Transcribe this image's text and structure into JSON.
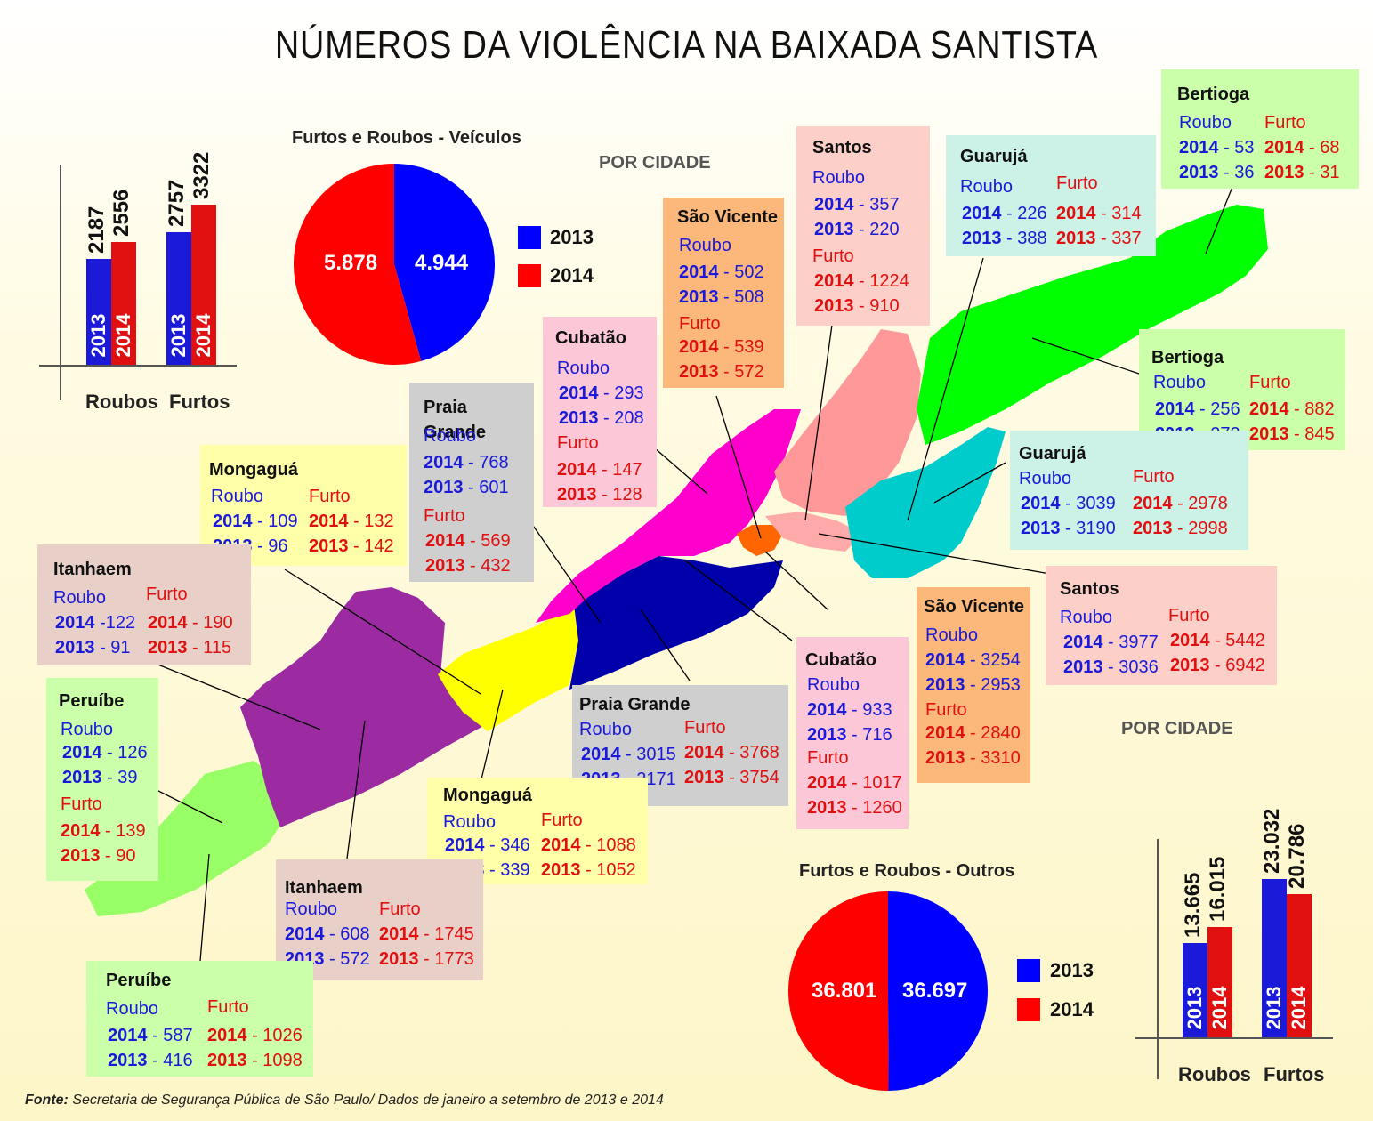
{
  "title": "NÚMEROS DA VIOLÊNCIA NA BAIXADA SANTISTA",
  "source_label": "Fonte:",
  "source_text": "Secretaria de Segurança Pública de São Paulo/ Dados de janeiro a setembro de 2013 e 2014",
  "por_cidade": "POR CIDADE",
  "colors": {
    "y2013": "#1a1ad8",
    "y2014": "#e01010"
  },
  "legend": {
    "y2013": "2013",
    "y2014": "2014"
  },
  "labels": {
    "roubo": "Roubo",
    "furto": "Furto"
  },
  "veiculos": {
    "title": "Furtos e Roubos - Veículos",
    "pie": {
      "v2014": "5.878",
      "v2013": "4.944"
    },
    "bars": [
      {
        "cat": "Roubos",
        "v2013": "2187",
        "v2014": "2556"
      },
      {
        "cat": "Furtos",
        "v2013": "2757",
        "v2014": "3322"
      }
    ],
    "cities": {
      "bertioga": {
        "name": "Bertioga",
        "r14": "53",
        "r13": "36",
        "f14": "68",
        "f13": "31"
      },
      "guaruja": {
        "name": "Guarujá",
        "r14": "226",
        "r13": "388",
        "f14": "314",
        "f13": "337"
      },
      "santos": {
        "name": "Santos",
        "r14": "357",
        "r13": "220",
        "f14": "1224",
        "f13": "910"
      },
      "saovicente": {
        "name": "São Vicente",
        "r14": "502",
        "r13": "508",
        "f14": "539",
        "f13": "572"
      },
      "cubatao": {
        "name": "Cubatão",
        "r14": "293",
        "r13": "208",
        "f14": "147",
        "f13": "128"
      },
      "praiagrande": {
        "name": "Praia Grande",
        "r14": "768",
        "r13": "601",
        "f14": "569",
        "f13": "432"
      },
      "mongagua": {
        "name": "Mongaguá",
        "r14": "109",
        "r13": "96",
        "f14": "132",
        "f13": "142"
      },
      "itanhaem": {
        "name": "Itanhaem",
        "r14": "-122",
        "r13": "- 91",
        "f14": "190",
        "f13": "115"
      },
      "peruibe": {
        "name": "Peruíbe",
        "r14": "126",
        "r13": "39",
        "f14": "139",
        "f13": "90"
      }
    }
  },
  "outros": {
    "title": "Furtos e Roubos - Outros",
    "pie": {
      "v2014": "36.801",
      "v2013": "36.697"
    },
    "bars": [
      {
        "cat": "Roubos",
        "v2013": "13.665",
        "v2014": "16.015"
      },
      {
        "cat": "Furtos",
        "v2013": "23.032",
        "v2014": "20.786"
      }
    ],
    "cities": {
      "bertioga": {
        "name": "Bertioga",
        "r14": "256",
        "r13": "272",
        "f14": "882",
        "f13": "845"
      },
      "guaruja": {
        "name": "Guarujá",
        "r14": "3039",
        "r13": "3190",
        "f14": "2978",
        "f13": "2998"
      },
      "santos": {
        "name": "Santos",
        "r14": "3977",
        "r13": "3036",
        "f14": "5442",
        "f13": "6942"
      },
      "saovicente": {
        "name": "São Vicente",
        "r14": "3254",
        "r13": "2953",
        "f14": "2840",
        "f13": "3310"
      },
      "cubatao": {
        "name": "Cubatão",
        "r14": "933",
        "r13": "716",
        "f14": "1017",
        "f13": "1260"
      },
      "praiagrande": {
        "name": "Praia Grande",
        "r14": "3015",
        "r13": "2171",
        "f14": "3768",
        "f13": "3754"
      },
      "mongagua": {
        "name": "Mongaguá",
        "r14": "346",
        "r13": "339",
        "f14": "1088",
        "f13": "1052"
      },
      "itanhaem": {
        "name": "Itanhaem",
        "r14": "608",
        "r13": "572",
        "f14": "1745",
        "f13": "1773"
      },
      "peruibe": {
        "name": "Peruíbe",
        "r14": "587",
        "r13": "416",
        "f14": "1026",
        "f13": "1098"
      }
    }
  },
  "chart_data": [
    {
      "type": "pie",
      "title": "Furtos e Roubos - Veículos",
      "categories": [
        "2013",
        "2014"
      ],
      "values": [
        4944,
        5878
      ]
    },
    {
      "type": "bar",
      "categories": [
        "Roubos",
        "Furtos"
      ],
      "series": [
        {
          "name": "2013",
          "values": [
            2187,
            2757
          ]
        },
        {
          "name": "2014",
          "values": [
            2556,
            3322
          ]
        }
      ]
    },
    {
      "type": "pie",
      "title": "Furtos e Roubos - Outros",
      "categories": [
        "2013",
        "2014"
      ],
      "values": [
        36697,
        36801
      ]
    },
    {
      "type": "bar",
      "categories": [
        "Roubos",
        "Furtos"
      ],
      "series": [
        {
          "name": "2013",
          "values": [
            13665,
            23032
          ]
        },
        {
          "name": "2014",
          "values": [
            16015,
            20786
          ]
        }
      ]
    }
  ]
}
